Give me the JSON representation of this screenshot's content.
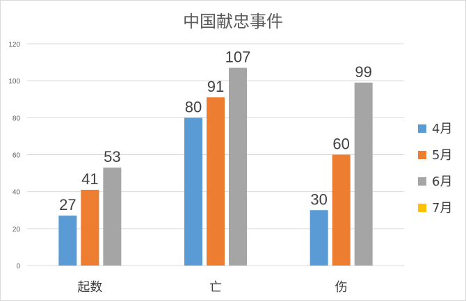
{
  "chart_data": {
    "type": "bar",
    "title": "中国献忠事件",
    "categories": [
      "起数",
      "亡",
      "伤"
    ],
    "series": [
      {
        "name": "4月",
        "color": "#5b9bd5",
        "values": [
          27,
          80,
          30
        ]
      },
      {
        "name": "5月",
        "color": "#ed7d31",
        "values": [
          41,
          91,
          60
        ]
      },
      {
        "name": "6月",
        "color": "#a5a5a5",
        "values": [
          53,
          107,
          99
        ]
      },
      {
        "name": "7月",
        "color": "#ffc000",
        "values": [
          null,
          null,
          null
        ]
      }
    ],
    "ylim": [
      0,
      120
    ],
    "yticks": [
      0,
      20,
      40,
      60,
      80,
      100,
      120
    ],
    "xlabel": "",
    "ylabel": "",
    "grid": true,
    "legend": "right"
  }
}
